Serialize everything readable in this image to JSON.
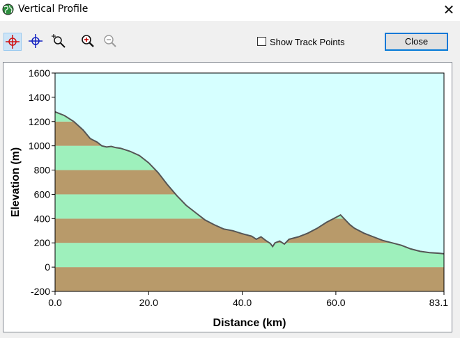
{
  "window": {
    "title": "Vertical Profile"
  },
  "toolbar": {
    "tools": [
      {
        "icon": "crosshair-red-icon",
        "active": true
      },
      {
        "icon": "crosshair-blue-icon",
        "active": false
      },
      {
        "icon": "zoom-box-icon",
        "active": false
      },
      {
        "icon": "zoom-in-icon",
        "active": false
      },
      {
        "icon": "zoom-out-icon",
        "active": false
      }
    ],
    "show_track_points_label": "Show Track Points",
    "show_track_points_checked": false,
    "close_label": "Close"
  },
  "chart_data": {
    "type": "area",
    "xlabel": "Distance  (km)",
    "ylabel": "Elevation (m)",
    "xlim": [
      0,
      83.1
    ],
    "ylim": [
      -200,
      1600
    ],
    "x_ticks": [
      "0.0",
      "20.0",
      "40.0",
      "60.0",
      "83.1"
    ],
    "x_tick_values": [
      0,
      20,
      40,
      60,
      83.1
    ],
    "y_ticks": [
      "1600",
      "1400",
      "1200",
      "1000",
      "800",
      "600",
      "400",
      "200",
      "0",
      "-200"
    ],
    "y_tick_values": [
      1600,
      1400,
      1200,
      1000,
      800,
      600,
      400,
      200,
      0,
      -200
    ],
    "grid": false,
    "colors": {
      "sky": "#d6ffff",
      "band_brown": "#b89a6a",
      "band_green": "#9ef0bc",
      "line": "#555555"
    },
    "series": [
      {
        "x": [
          0,
          2,
          4,
          6,
          7.5,
          9,
          10,
          11,
          12,
          13,
          14,
          16,
          18,
          20,
          22,
          24,
          26,
          28,
          30,
          32,
          34,
          36,
          38,
          40,
          42,
          43,
          44,
          45,
          46,
          46.5,
          47,
          48,
          49,
          50,
          52,
          54,
          56,
          58,
          60,
          61,
          62,
          63,
          64,
          66,
          68,
          70,
          72,
          74,
          76,
          78,
          80,
          82,
          83.1
        ],
        "y": [
          1280,
          1250,
          1200,
          1130,
          1060,
          1030,
          1000,
          990,
          995,
          985,
          980,
          955,
          920,
          860,
          780,
          680,
          590,
          510,
          450,
          390,
          350,
          315,
          300,
          275,
          255,
          230,
          250,
          220,
          195,
          170,
          200,
          215,
          190,
          230,
          250,
          280,
          320,
          370,
          410,
          430,
          390,
          350,
          320,
          280,
          250,
          220,
          200,
          180,
          150,
          130,
          120,
          115,
          110
        ]
      }
    ]
  }
}
